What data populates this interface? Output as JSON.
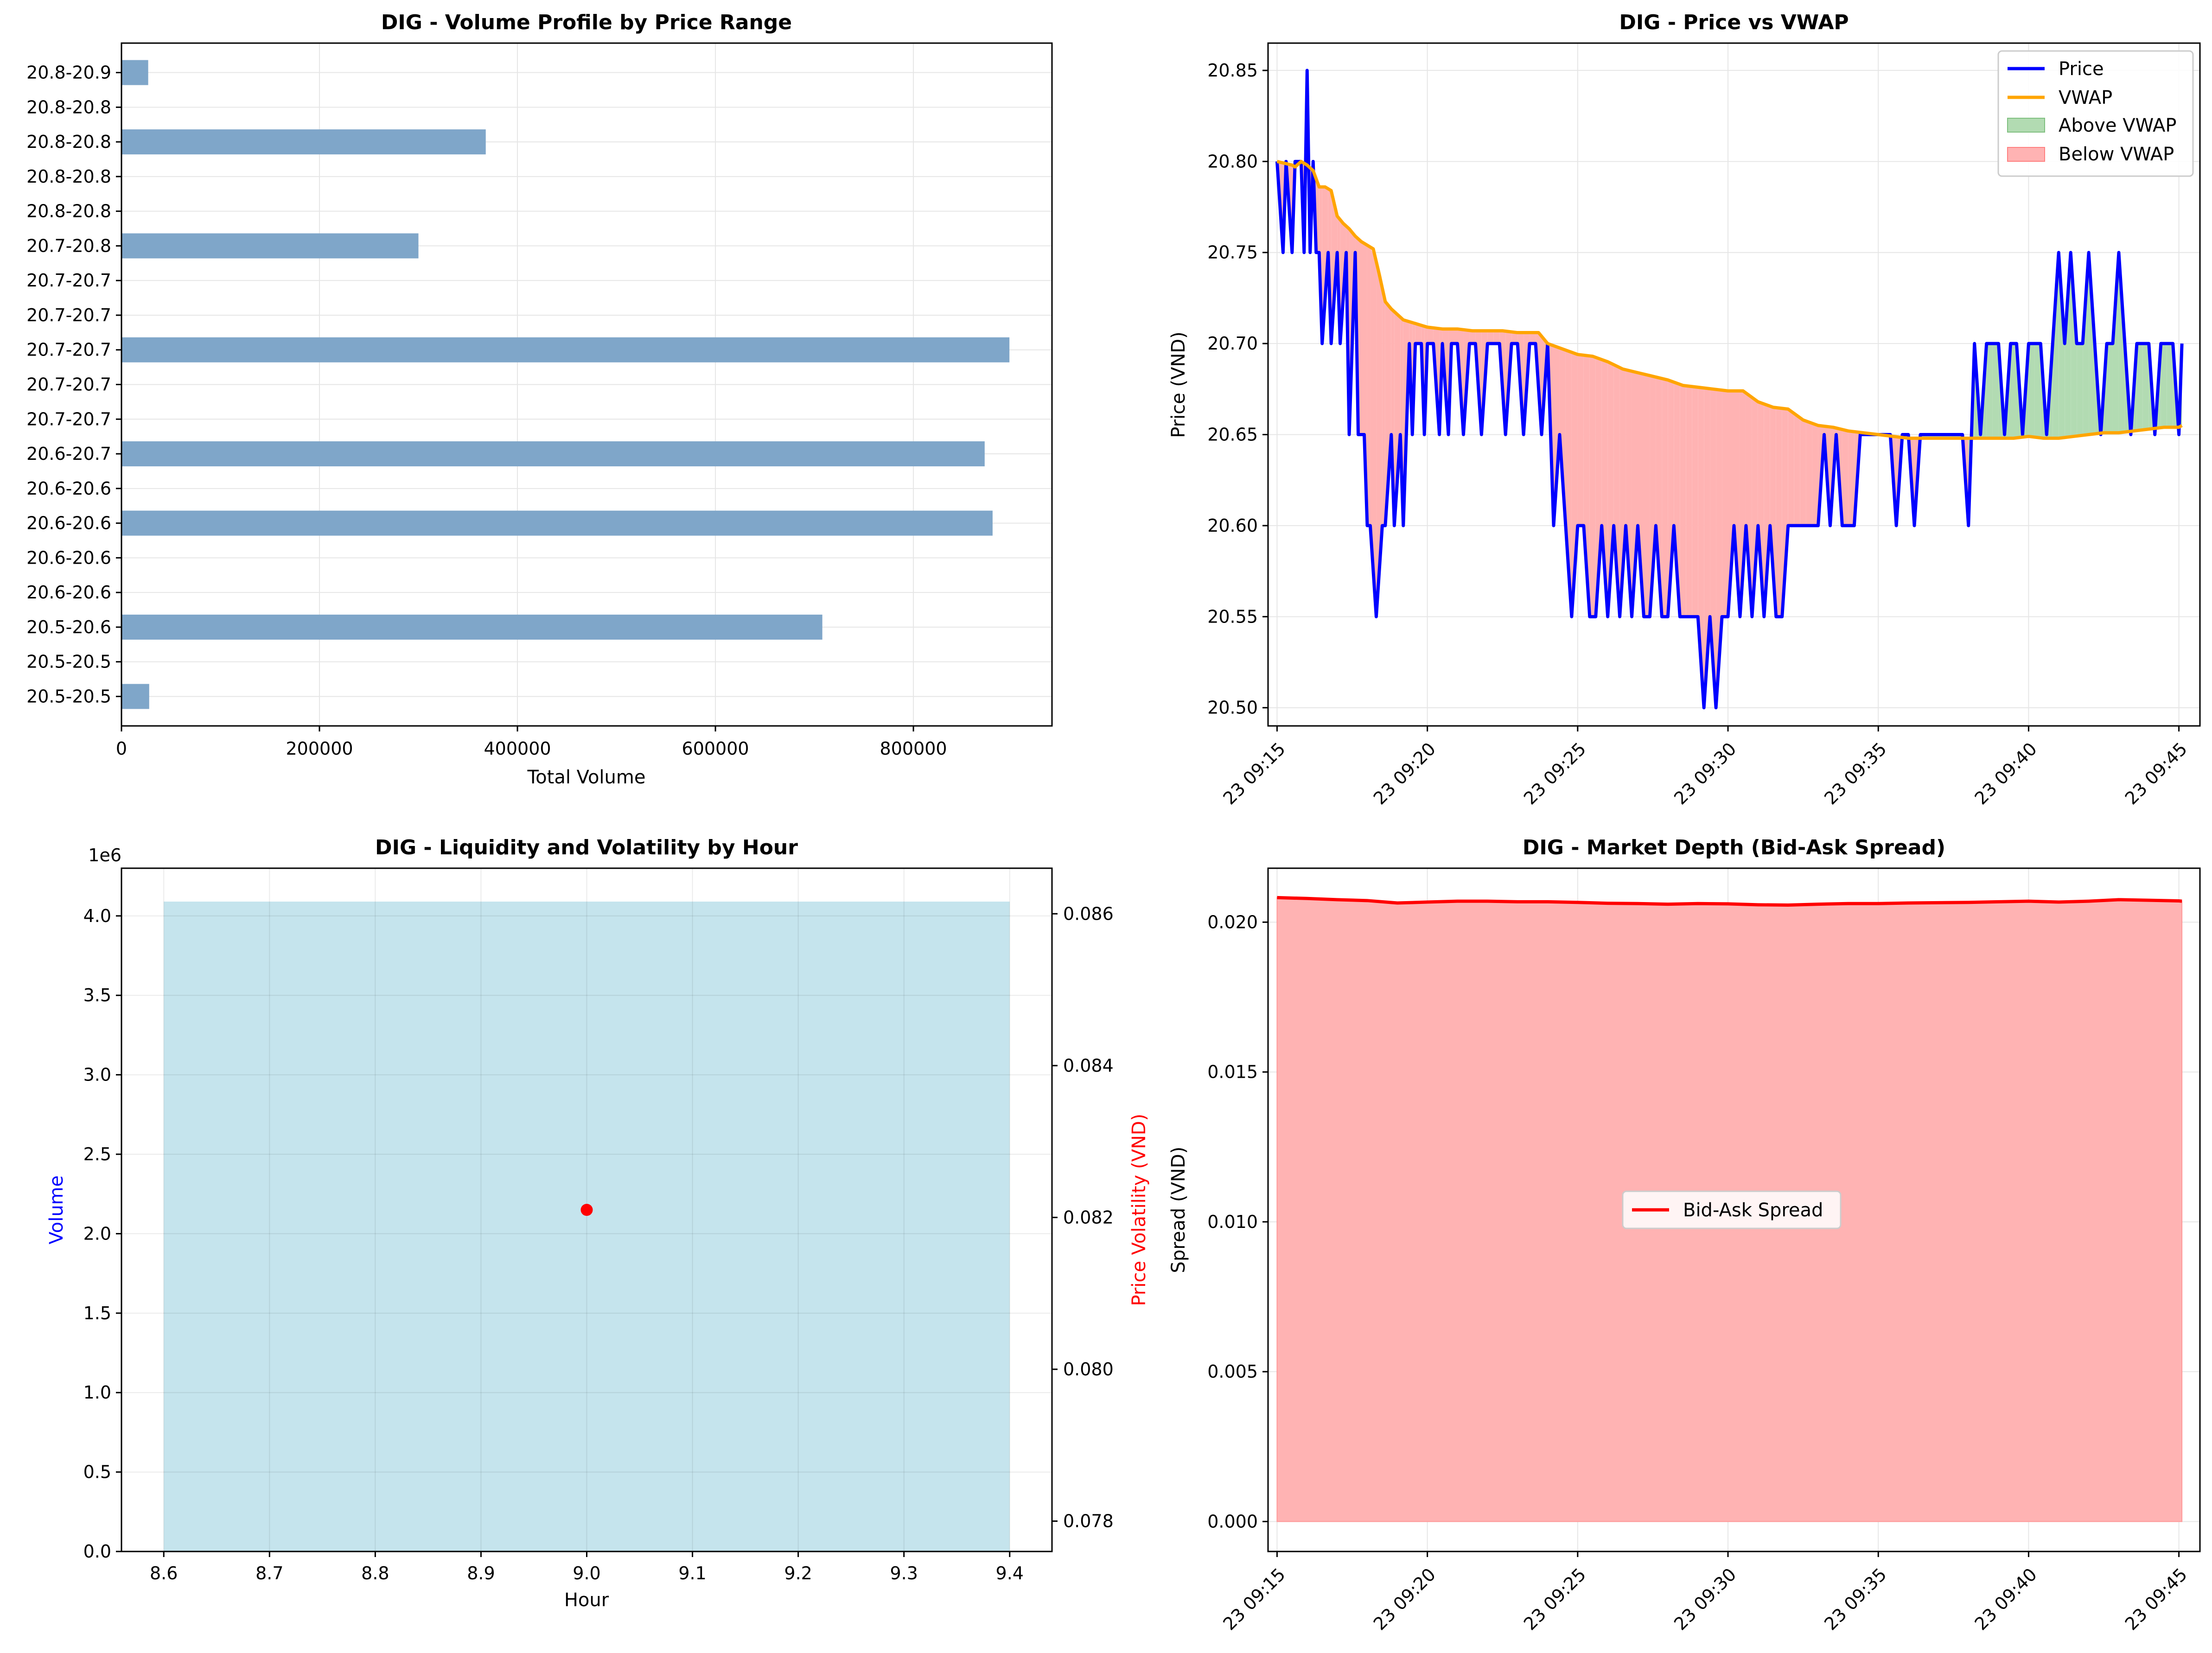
{
  "colors": {
    "bar": "#7fa6c9",
    "price": "#0000ff",
    "vwap": "#ffa500",
    "above": "#b2dbb2",
    "below": "#ffb3b3",
    "liq_bar": "#add8e6",
    "vol_point": "#ff0000",
    "spread_line": "#ff0000",
    "spread_fill": "#ffb3b3"
  },
  "chart_data": [
    {
      "type": "bar",
      "orientation": "horizontal",
      "title": "DIG - Volume Profile by Price Range",
      "xlabel": "Total Volume",
      "ylabel": "",
      "xlim": [
        0,
        940000
      ],
      "xticks": [
        "0",
        "200000",
        "400000",
        "600000",
        "800000"
      ],
      "xtick_values": [
        0,
        200000,
        400000,
        600000,
        800000
      ],
      "categories": [
        "20.5-20.5",
        "20.5-20.5",
        "20.5-20.6",
        "20.6-20.6",
        "20.6-20.6",
        "20.6-20.6",
        "20.6-20.6",
        "20.6-20.7",
        "20.7-20.7",
        "20.7-20.7",
        "20.7-20.7",
        "20.7-20.7",
        "20.7-20.7",
        "20.7-20.8",
        "20.8-20.8",
        "20.8-20.8",
        "20.8-20.8",
        "20.8-20.8",
        "20.8-20.9"
      ],
      "values": [
        28000,
        0,
        708000,
        0,
        0,
        880000,
        0,
        872000,
        0,
        0,
        897000,
        0,
        0,
        300000,
        0,
        0,
        368000,
        0,
        27000
      ],
      "grid": true
    },
    {
      "type": "line",
      "title": "DIG - Price vs VWAP",
      "xlabel": "",
      "ylabel": "Price (VND)",
      "xlim": [
        -0.3,
        30.7
      ],
      "ylim": [
        20.49,
        20.865
      ],
      "xticks": [
        "23 09:15",
        "23 09:20",
        "23 09:25",
        "23 09:30",
        "23 09:35",
        "23 09:40",
        "23 09:45"
      ],
      "xtick_values": [
        0,
        5,
        10,
        15,
        20,
        25,
        30
      ],
      "yticks": [
        "20.50",
        "20.55",
        "20.60",
        "20.65",
        "20.70",
        "20.75",
        "20.80",
        "20.85"
      ],
      "ytick_values": [
        20.5,
        20.55,
        20.6,
        20.65,
        20.7,
        20.75,
        20.8,
        20.85
      ],
      "legend_position": "top-right",
      "legend": [
        "Price",
        "VWAP",
        "Above VWAP",
        "Below VWAP"
      ],
      "series": [
        {
          "name": "Price",
          "x": [
            0,
            0.2,
            0.3,
            0.5,
            0.6,
            0.8,
            0.9,
            1.0,
            1.1,
            1.2,
            1.3,
            1.4,
            1.5,
            1.7,
            1.8,
            2.0,
            2.1,
            2.3,
            2.4,
            2.6,
            2.7,
            2.9,
            3.0,
            3.1,
            3.3,
            3.5,
            3.6,
            3.8,
            3.9,
            4.1,
            4.2,
            4.4,
            4.5,
            4.6,
            4.8,
            4.9,
            5.0,
            5.2,
            5.4,
            5.5,
            5.7,
            5.8,
            6.0,
            6.2,
            6.4,
            6.6,
            6.8,
            7.0,
            7.2,
            7.4,
            7.6,
            7.8,
            8.0,
            8.2,
            8.4,
            8.6,
            8.8,
            9.0,
            9.2,
            9.4,
            9.6,
            9.8,
            10.0,
            10.2,
            10.4,
            10.6,
            10.8,
            11.0,
            11.2,
            11.4,
            11.6,
            11.8,
            12.0,
            12.2,
            12.4,
            12.6,
            12.8,
            13.0,
            13.2,
            13.4,
            13.6,
            13.8,
            14.0,
            14.2,
            14.4,
            14.6,
            14.8,
            15.0,
            15.2,
            15.4,
            15.6,
            15.8,
            16.0,
            16.2,
            16.4,
            16.6,
            16.8,
            17.0,
            17.2,
            17.4,
            17.6,
            17.8,
            18.0,
            18.2,
            18.4,
            18.6,
            18.8,
            19.0,
            19.2,
            19.4,
            19.6,
            19.8,
            20.0,
            20.2,
            20.4,
            20.6,
            20.8,
            21.0,
            21.2,
            21.4,
            21.6,
            21.8,
            22.0,
            22.2,
            22.4,
            22.6,
            22.8,
            23.0,
            23.2,
            23.4,
            23.6,
            23.8,
            24.0,
            24.2,
            24.4,
            24.6,
            24.8,
            25.0,
            25.2,
            25.4,
            25.6,
            25.8,
            26.0,
            26.2,
            26.4,
            26.6,
            26.8,
            27.0,
            27.2,
            27.4,
            27.6,
            27.8,
            28.0,
            28.2,
            28.4,
            28.6,
            28.8,
            29.0,
            29.2,
            29.4,
            29.6,
            29.8,
            30.0,
            30.1
          ],
          "values": [
            20.8,
            20.75,
            20.8,
            20.75,
            20.8,
            20.8,
            20.75,
            20.85,
            20.75,
            20.8,
            20.75,
            20.75,
            20.7,
            20.75,
            20.7,
            20.75,
            20.7,
            20.75,
            20.65,
            20.75,
            20.65,
            20.65,
            20.6,
            20.6,
            20.55,
            20.6,
            20.6,
            20.65,
            20.6,
            20.65,
            20.6,
            20.7,
            20.65,
            20.7,
            20.7,
            20.65,
            20.7,
            20.7,
            20.65,
            20.7,
            20.65,
            20.7,
            20.7,
            20.65,
            20.7,
            20.7,
            20.65,
            20.7,
            20.7,
            20.7,
            20.65,
            20.7,
            20.7,
            20.65,
            20.7,
            20.7,
            20.65,
            20.7,
            20.6,
            20.65,
            20.6,
            20.55,
            20.6,
            20.6,
            20.55,
            20.55,
            20.6,
            20.55,
            20.6,
            20.55,
            20.6,
            20.55,
            20.6,
            20.55,
            20.55,
            20.6,
            20.55,
            20.55,
            20.6,
            20.55,
            20.55,
            20.55,
            20.55,
            20.5,
            20.55,
            20.5,
            20.55,
            20.55,
            20.6,
            20.55,
            20.6,
            20.55,
            20.6,
            20.55,
            20.6,
            20.55,
            20.55,
            20.6,
            20.6,
            20.6,
            20.6,
            20.6,
            20.6,
            20.65,
            20.6,
            20.65,
            20.6,
            20.6,
            20.6,
            20.65,
            20.65,
            20.65,
            20.65,
            20.65,
            20.65,
            20.6,
            20.65,
            20.65,
            20.6,
            20.65,
            20.65,
            20.65,
            20.65,
            20.65,
            20.65,
            20.65,
            20.65,
            20.6,
            20.7,
            20.65,
            20.7,
            20.7,
            20.7,
            20.65,
            20.7,
            20.7,
            20.65,
            20.7,
            20.7,
            20.7,
            20.65,
            20.7,
            20.75,
            20.7,
            20.75,
            20.7,
            20.7,
            20.75,
            20.7,
            20.65,
            20.7,
            20.7,
            20.75,
            20.7,
            20.65,
            20.7,
            20.7,
            20.7,
            20.65,
            20.7,
            20.7,
            20.7,
            20.65,
            20.7
          ]
        },
        {
          "name": "VWAP",
          "x": [
            0,
            0.5,
            0.6,
            0.8,
            1.0,
            1.2,
            1.4,
            1.5,
            1.6,
            1.8,
            2.0,
            2.2,
            2.4,
            2.6,
            2.8,
            3.0,
            3.2,
            3.4,
            3.6,
            3.8,
            4.0,
            4.2,
            4.4,
            4.6,
            4.8,
            5.0,
            5.5,
            6.0,
            6.5,
            7.0,
            7.5,
            8.0,
            8.5,
            8.7,
            9.0,
            9.5,
            10.0,
            10.5,
            11.0,
            11.5,
            12.0,
            12.5,
            13.0,
            13.5,
            14.0,
            14.5,
            15.0,
            15.5,
            16.0,
            16.5,
            17.0,
            17.5,
            18.0,
            18.5,
            19.0,
            19.5,
            20.0,
            20.5,
            21.0,
            21.5,
            22.0,
            22.5,
            23.0,
            23.5,
            24.0,
            24.5,
            25.0,
            25.5,
            26.0,
            26.5,
            27.0,
            27.5,
            28.0,
            28.5,
            29.0,
            29.5,
            30.0,
            30.1
          ],
          "values": [
            20.8,
            20.798,
            20.797,
            20.8,
            20.798,
            20.795,
            20.786,
            20.786,
            20.786,
            20.784,
            20.77,
            20.766,
            20.763,
            20.759,
            20.756,
            20.754,
            20.752,
            20.738,
            20.723,
            20.719,
            20.716,
            20.713,
            20.712,
            20.711,
            20.71,
            20.709,
            20.708,
            20.708,
            20.707,
            20.707,
            20.707,
            20.706,
            20.706,
            20.706,
            20.7,
            20.697,
            20.694,
            20.693,
            20.69,
            20.686,
            20.684,
            20.682,
            20.68,
            20.677,
            20.676,
            20.675,
            20.674,
            20.674,
            20.668,
            20.665,
            20.664,
            20.658,
            20.655,
            20.654,
            20.652,
            20.651,
            20.65,
            20.649,
            20.648,
            20.648,
            20.648,
            20.648,
            20.648,
            20.648,
            20.648,
            20.648,
            20.649,
            20.648,
            20.648,
            20.649,
            20.65,
            20.651,
            20.651,
            20.652,
            20.653,
            20.654,
            20.654,
            20.655
          ]
        }
      ],
      "grid": true
    },
    {
      "type": "bar",
      "title": "DIG - Liquidity and Volatility by Hour",
      "xlabel": "Hour",
      "ylabel": "Volume",
      "y2label": "Price Volatility (VND)",
      "offset_text": "1e6",
      "xlim": [
        8.56,
        9.44
      ],
      "ylim": [
        0,
        4.3
      ],
      "y2lim": [
        0.0776,
        0.0866
      ],
      "xticks": [
        "8.6",
        "8.7",
        "8.8",
        "8.9",
        "9.0",
        "9.1",
        "9.2",
        "9.3",
        "9.4"
      ],
      "xtick_values": [
        8.6,
        8.7,
        8.8,
        8.9,
        9.0,
        9.1,
        9.2,
        9.3,
        9.4
      ],
      "yticks": [
        "0.0",
        "0.5",
        "1.0",
        "1.5",
        "2.0",
        "2.5",
        "3.0",
        "3.5",
        "4.0"
      ],
      "ytick_values": [
        0,
        0.5,
        1.0,
        1.5,
        2.0,
        2.5,
        3.0,
        3.5,
        4.0
      ],
      "y2ticks": [
        "0.078",
        "0.080",
        "0.082",
        "0.084",
        "0.086"
      ],
      "y2tick_values": [
        0.078,
        0.08,
        0.082,
        0.084,
        0.086
      ],
      "categories": [
        9.0
      ],
      "values": [
        4.09
      ],
      "bar_width": 0.8,
      "volatility": [
        {
          "x": 9.0,
          "y": 0.0821
        }
      ],
      "grid": true
    },
    {
      "type": "area",
      "title": "DIG - Market Depth (Bid-Ask Spread)",
      "xlabel": "",
      "ylabel": "Spread (VND)",
      "xlim": [
        -0.3,
        30.7
      ],
      "ylim": [
        -0.001,
        0.0218
      ],
      "xticks": [
        "23 09:15",
        "23 09:20",
        "23 09:25",
        "23 09:30",
        "23 09:35",
        "23 09:40",
        "23 09:45"
      ],
      "xtick_values": [
        0,
        5,
        10,
        15,
        20,
        25,
        30
      ],
      "yticks": [
        "0.000",
        "0.005",
        "0.010",
        "0.015",
        "0.020"
      ],
      "ytick_values": [
        0,
        0.005,
        0.01,
        0.015,
        0.02
      ],
      "legend_position": "center",
      "legend": [
        "Bid-Ask Spread"
      ],
      "series": [
        {
          "name": "Bid-Ask Spread",
          "x": [
            0,
            1,
            2,
            3,
            4,
            5,
            6,
            7,
            8,
            9,
            10,
            11,
            12,
            13,
            14,
            15,
            16,
            17,
            18,
            19,
            20,
            21,
            22,
            23,
            24,
            25,
            26,
            27,
            28,
            29,
            30,
            30.1
          ],
          "values": [
            0.02082,
            0.02079,
            0.02075,
            0.02072,
            0.02064,
            0.02067,
            0.0207,
            0.0207,
            0.02068,
            0.02068,
            0.02066,
            0.02063,
            0.02062,
            0.0206,
            0.02062,
            0.02061,
            0.02058,
            0.02057,
            0.0206,
            0.02062,
            0.02062,
            0.02064,
            0.02065,
            0.02066,
            0.02068,
            0.0207,
            0.02067,
            0.0207,
            0.02075,
            0.02073,
            0.02071,
            0.0207
          ]
        }
      ],
      "grid": true
    }
  ]
}
